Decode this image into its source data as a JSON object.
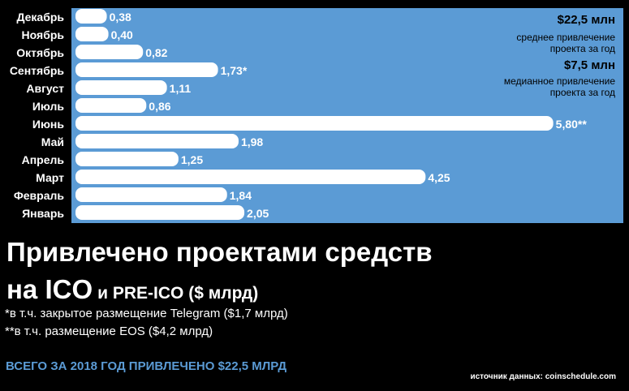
{
  "chart_data": {
    "type": "bar",
    "orientation": "horizontal",
    "categories": [
      "Декабрь",
      "Ноябрь",
      "Октябрь",
      "Сентябрь",
      "Август",
      "Июль",
      "Июнь",
      "Май",
      "Апрель",
      "Март",
      "Февраль",
      "Январь"
    ],
    "values": [
      0.38,
      0.4,
      0.82,
      1.73,
      1.11,
      0.86,
      5.8,
      1.98,
      1.25,
      4.25,
      1.84,
      2.05
    ],
    "value_labels": [
      "0,38",
      "0,40",
      "0,82",
      "1,73*",
      "1,11",
      "0,86",
      "5,80**",
      "1,98",
      "1,25",
      "4,25",
      "1,84",
      "2,05"
    ],
    "xlim": [
      0,
      6.7
    ],
    "grid": false,
    "colors": {
      "background": "#5b9bd5",
      "bars": "#ffffff",
      "labels": "#ffffff"
    }
  },
  "stats": {
    "mean_value": "$22,5 млн",
    "mean_caption_1": "среднее привлечение",
    "mean_caption_2": "проекта за год",
    "median_value": "$7,5 млн",
    "median_caption_1": "медианное привлечение",
    "median_caption_2": "проекта за год"
  },
  "title": {
    "line1": "Привлечено проектами средств",
    "line2_big": "на ICO",
    "line2_small": "и PRE-ICO ($ млрд)"
  },
  "footnotes": [
    "*в т.ч. закрытое размещение Telegram ($1,7 млрд)",
    "**в т.ч. размещение EOS ($4,2 млрд)"
  ],
  "total": "ВСЕГО ЗА 2018 ГОД ПРИВЛЕЧЕНО $22,5 МЛРД",
  "source": "источник данных: coinschedule.com",
  "colors": {
    "accent": "#5b9bd5",
    "background": "#000000",
    "text": "#ffffff"
  }
}
